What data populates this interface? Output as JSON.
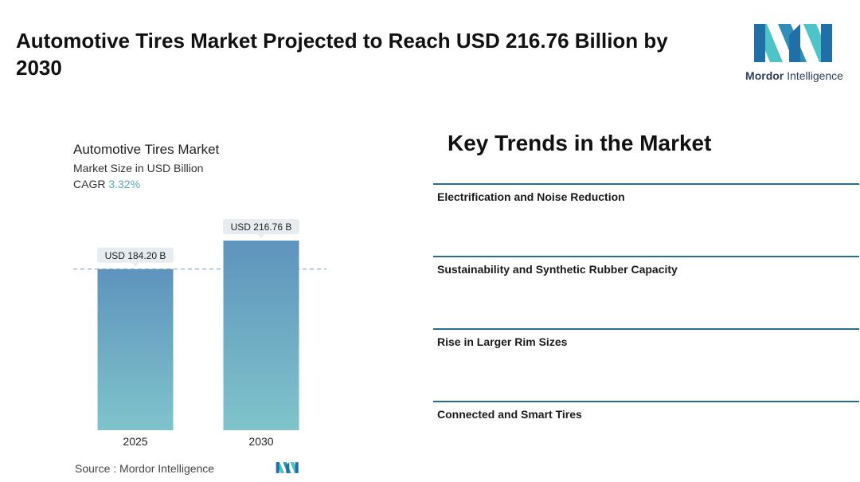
{
  "page": {
    "title": "Automotive Tires Market Projected to Reach USD 216.76 Billion by 2030"
  },
  "logo": {
    "brand_bold": "Mordor",
    "brand_rest": " Intelligence",
    "colors": [
      "#1f6fa8",
      "#4ec3c8"
    ]
  },
  "chart_data": {
    "type": "bar",
    "title": "Automotive Tires Market",
    "subtitle": "Market Size in USD Billion",
    "cagr_label": "CAGR",
    "cagr_value": "3.32%",
    "categories": [
      "2025",
      "2030"
    ],
    "values": [
      184.2,
      216.76
    ],
    "data_labels": [
      "USD 184.20 B",
      "USD 216.76 B"
    ],
    "ylim": [
      0,
      216.76
    ],
    "reference_line": 184.2,
    "colors": {
      "bar_top": "#5e93bd",
      "bar_bottom": "#7fc4cb",
      "label_bg": "#e6ecef",
      "ref_line": "#7a9fb5"
    }
  },
  "source": {
    "text": "Source :  Mordor Intelligence"
  },
  "trends": {
    "title": "Key Trends in the Market",
    "items": [
      {
        "label": "Electrification and Noise Reduction"
      },
      {
        "label": "Sustainability and Synthetic Rubber Capacity"
      },
      {
        "label": "Rise in Larger Rim Sizes"
      },
      {
        "label": "Connected and Smart Tires"
      }
    ],
    "line_color": "#2b6f86"
  }
}
